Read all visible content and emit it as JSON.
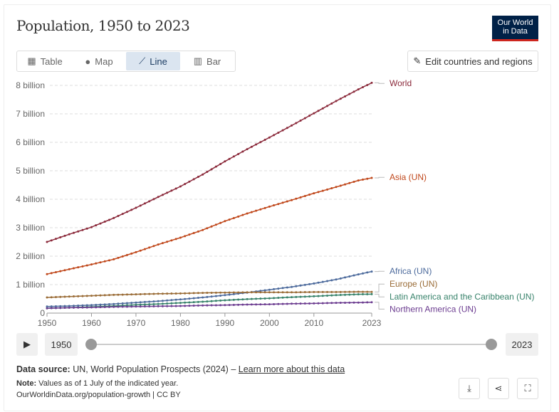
{
  "header": {
    "title": "Population, 1950 to 2023",
    "logo": "Our World in Data",
    "logo_l1": "Our World",
    "logo_l2": "in Data"
  },
  "tabs": [
    {
      "label": "Table",
      "icon": "table-icon"
    },
    {
      "label": "Map",
      "icon": "globe-icon"
    },
    {
      "label": "Line",
      "icon": "line-chart-icon",
      "active": true
    },
    {
      "label": "Bar",
      "icon": "bar-chart-icon"
    }
  ],
  "edit_button": "Edit countries and regions",
  "chart_data": {
    "type": "line",
    "title": "Population, 1950 to 2023",
    "xlim": [
      1950,
      2023
    ],
    "ylim": [
      0,
      8
    ],
    "yticks": [
      {
        "v": 0,
        "label": "0"
      },
      {
        "v": 1,
        "label": "1 billion"
      },
      {
        "v": 2,
        "label": "2 billion"
      },
      {
        "v": 3,
        "label": "3 billion"
      },
      {
        "v": 4,
        "label": "4 billion"
      },
      {
        "v": 5,
        "label": "5 billion"
      },
      {
        "v": 6,
        "label": "6 billion"
      },
      {
        "v": 7,
        "label": "7 billion"
      },
      {
        "v": 8,
        "label": "8 billion"
      }
    ],
    "xticks": [
      {
        "v": 1950,
        "label": "1950"
      },
      {
        "v": 1960,
        "label": "1960"
      },
      {
        "v": 1970,
        "label": "1970"
      },
      {
        "v": 1980,
        "label": "1980"
      },
      {
        "v": 1990,
        "label": "1990"
      },
      {
        "v": 2000,
        "label": "2000"
      },
      {
        "v": 2010,
        "label": "2010"
      },
      {
        "v": 2023,
        "label": "2023"
      }
    ],
    "x": [
      1950,
      1955,
      1960,
      1965,
      1970,
      1975,
      1980,
      1985,
      1990,
      1995,
      2000,
      2005,
      2010,
      2015,
      2020,
      2023
    ],
    "series": [
      {
        "name": "World",
        "color": "#8b2a3b",
        "labelY": 8.07,
        "values": [
          2.5,
          2.77,
          3.02,
          3.34,
          3.7,
          4.08,
          4.45,
          4.87,
          5.33,
          5.76,
          6.17,
          6.59,
          7.02,
          7.45,
          7.86,
          8.09
        ]
      },
      {
        "name": "Asia (UN)",
        "color": "#c0481c",
        "labelY": 4.77,
        "values": [
          1.37,
          1.54,
          1.71,
          1.89,
          2.14,
          2.41,
          2.65,
          2.92,
          3.23,
          3.5,
          3.74,
          3.97,
          4.21,
          4.43,
          4.66,
          4.75
        ]
      },
      {
        "name": "Africa (UN)",
        "color": "#4c6a9c",
        "labelY": 1.47,
        "values": [
          0.23,
          0.25,
          0.28,
          0.32,
          0.37,
          0.42,
          0.48,
          0.55,
          0.63,
          0.72,
          0.82,
          0.92,
          1.04,
          1.18,
          1.36,
          1.46
        ]
      },
      {
        "name": "Europe (UN)",
        "color": "#9a6c37",
        "labelY": 1.02,
        "values": [
          0.55,
          0.58,
          0.61,
          0.64,
          0.66,
          0.68,
          0.69,
          0.71,
          0.72,
          0.73,
          0.73,
          0.73,
          0.74,
          0.74,
          0.75,
          0.745
        ]
      },
      {
        "name": "Latin America and the Caribbean (UN)",
        "color": "#38836b",
        "labelY": 0.57,
        "values": [
          0.17,
          0.19,
          0.22,
          0.25,
          0.29,
          0.32,
          0.36,
          0.4,
          0.45,
          0.49,
          0.52,
          0.56,
          0.59,
          0.63,
          0.66,
          0.665
        ]
      },
      {
        "name": "Northern America (UN)",
        "color": "#6d3e91",
        "labelY": 0.14,
        "values": [
          0.17,
          0.19,
          0.2,
          0.22,
          0.23,
          0.24,
          0.25,
          0.27,
          0.28,
          0.3,
          0.31,
          0.33,
          0.34,
          0.36,
          0.37,
          0.38
        ]
      }
    ]
  },
  "timeline": {
    "start": "1950",
    "end": "2023"
  },
  "footer": {
    "source_label": "Data source:",
    "source": "UN, World Population Prospects (2024) – ",
    "learn_more": "Learn more about this data",
    "note_label": "Note:",
    "note": "Values as of 1 July of the indicated year.",
    "url": "OurWorldinData.org/population-growth | CC BY"
  }
}
